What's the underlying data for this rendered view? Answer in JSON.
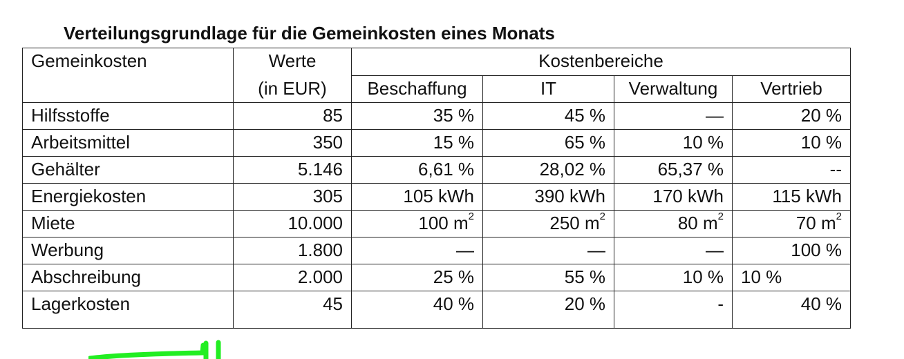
{
  "title": "Verteilungsgrundlage für die Gemeinkosten eines Monats",
  "headers": {
    "col1": "Gemeinkosten",
    "col2_line1": "Werte",
    "col2_line2": "(in EUR)",
    "group": "Kostenbereiche",
    "sub": [
      "Beschaffung",
      "IT",
      "Verwaltung",
      "Vertrieb"
    ]
  },
  "rows": [
    {
      "name": "Hilfsstoffe",
      "value": "85",
      "c1": "35 %",
      "c2": "45 %",
      "c3": "—",
      "c4": "20 %"
    },
    {
      "name": "Arbeitsmittel",
      "value": "350",
      "c1": "15 %",
      "c2": "65 %",
      "c3": "10 %",
      "c4": "10 %"
    },
    {
      "name": "Gehälter",
      "value": "5.146",
      "c1": "6,61 %",
      "c2": "28,02 %",
      "c3": "65,37 %",
      "c4": "--"
    },
    {
      "name": "Energiekosten",
      "value": "305",
      "c1": "105 kWh",
      "c2": "390 kWh",
      "c3": "170 kWh",
      "c4": "115 kWh"
    },
    {
      "name": "Miete",
      "value": "10.000",
      "c1": "100 m",
      "c2": "250 m",
      "c3": "80 m",
      "c4": "70 m",
      "sup": "2"
    },
    {
      "name": "Werbung",
      "value": "1.800",
      "c1": "—",
      "c2": "—",
      "c3": "—",
      "c4": "100 %"
    },
    {
      "name": "Abschreibung",
      "value": "2.000",
      "c1": "25 %",
      "c2": "55 %",
      "c3": "10 %",
      "c4": "10 %"
    },
    {
      "name": "Lagerkosten",
      "value": "45",
      "c1": "40 %",
      "c2": "20 %",
      "c3": "-",
      "c4": "40 %"
    }
  ],
  "colors": {
    "border": "#222222",
    "text": "#111111",
    "highlight_mark": "#22ee22"
  }
}
